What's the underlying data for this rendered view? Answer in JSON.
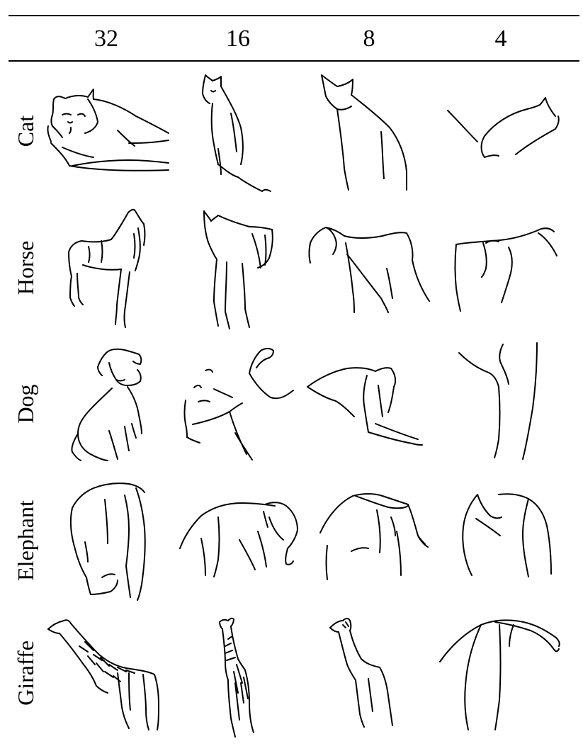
{
  "columns": [
    "32",
    "16",
    "8",
    "4"
  ],
  "rows": [
    "Cat",
    "Horse",
    "Dog",
    "Elephant",
    "Giraffe"
  ]
}
